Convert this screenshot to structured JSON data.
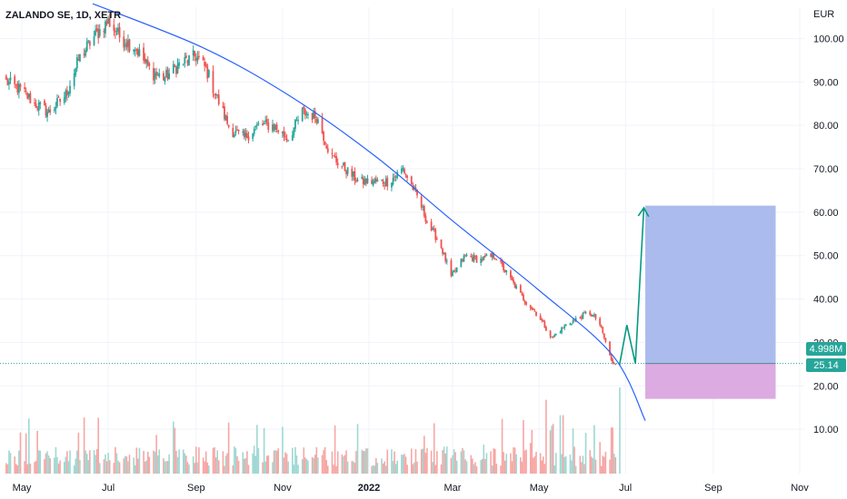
{
  "chart_data": {
    "type": "candlestick",
    "title": "ZALANDO SE, 1D, XETR",
    "y_unit": "EUR",
    "ylim": [
      2,
      109
    ],
    "y_ticks": [
      10,
      20,
      30,
      40,
      50,
      60,
      70,
      80,
      90,
      100
    ],
    "y_tick_labels": [
      "10.00",
      "20.00",
      "30.00",
      "40.00",
      "50.00",
      "60.00",
      "70.00",
      "80.00",
      "90.00",
      "100.00"
    ],
    "x_ticks": [
      {
        "date": "2021-05-01",
        "label": "May",
        "bold": false
      },
      {
        "date": "2021-07-01",
        "label": "Jul",
        "bold": false
      },
      {
        "date": "2021-09-01",
        "label": "Sep",
        "bold": false
      },
      {
        "date": "2021-11-01",
        "label": "Nov",
        "bold": false
      },
      {
        "date": "2022-01-01",
        "label": "2022",
        "bold": true
      },
      {
        "date": "2022-03-01",
        "label": "Mar",
        "bold": false
      },
      {
        "date": "2022-05-01",
        "label": "May",
        "bold": false
      },
      {
        "date": "2022-07-01",
        "label": "Jul",
        "bold": false
      },
      {
        "date": "2022-09-01",
        "label": "Sep",
        "bold": false
      },
      {
        "date": "2022-11-01",
        "label": "Nov",
        "bold": false
      }
    ],
    "grid": true,
    "colors": {
      "up": "#26a69a",
      "down": "#ef5350",
      "up_volume": "#9fd8d2",
      "down_volume": "#f6a7a5",
      "trendline": "#2962ff",
      "arrow": "#089981",
      "target_zone": "#a6b7ec",
      "stop_zone": "#d9a7e0",
      "badge": "#26a69a"
    },
    "close_path": [
      [
        "2021-04-20",
        90
      ],
      [
        "2021-05-01",
        88
      ],
      [
        "2021-05-10",
        85
      ],
      [
        "2021-05-20",
        83
      ],
      [
        "2021-06-01",
        87
      ],
      [
        "2021-06-10",
        95
      ],
      [
        "2021-06-20",
        100
      ],
      [
        "2021-07-01",
        104
      ],
      [
        "2021-07-10",
        100
      ],
      [
        "2021-07-20",
        98
      ],
      [
        "2021-08-01",
        92
      ],
      [
        "2021-08-10",
        91
      ],
      [
        "2021-08-20",
        94
      ],
      [
        "2021-09-01",
        96
      ],
      [
        "2021-09-08",
        93
      ],
      [
        "2021-09-15",
        87
      ],
      [
        "2021-09-25",
        79
      ],
      [
        "2021-10-05",
        77
      ],
      [
        "2021-10-15",
        80
      ],
      [
        "2021-10-25",
        80
      ],
      [
        "2021-11-05",
        77
      ],
      [
        "2021-11-15",
        83
      ],
      [
        "2021-11-25",
        82
      ],
      [
        "2021-12-05",
        73
      ],
      [
        "2021-12-15",
        70
      ],
      [
        "2021-12-25",
        67
      ],
      [
        "2022-01-05",
        67
      ],
      [
        "2022-01-15",
        67
      ],
      [
        "2022-01-25",
        70
      ],
      [
        "2022-02-05",
        63
      ],
      [
        "2022-02-12",
        57
      ],
      [
        "2022-02-20",
        53
      ],
      [
        "2022-02-28",
        45
      ],
      [
        "2022-03-10",
        50
      ],
      [
        "2022-03-20",
        49
      ],
      [
        "2022-03-31",
        50
      ],
      [
        "2022-04-10",
        45
      ],
      [
        "2022-04-20",
        40
      ],
      [
        "2022-05-01",
        36
      ],
      [
        "2022-05-10",
        31
      ],
      [
        "2022-05-20",
        34
      ],
      [
        "2022-05-31",
        36
      ],
      [
        "2022-06-05",
        37
      ],
      [
        "2022-06-12",
        35
      ],
      [
        "2022-06-18",
        29
      ],
      [
        "2022-06-22",
        25
      ],
      [
        "2022-06-27",
        25.14
      ]
    ],
    "last_volume_label": "4.998M",
    "last_price_label": "25.14",
    "trendline": [
      [
        "2021-06-20",
        108
      ],
      [
        "2021-09-05",
        98
      ],
      [
        "2021-11-05",
        87
      ],
      [
        "2022-01-05",
        73
      ],
      [
        "2022-03-01",
        58
      ],
      [
        "2022-05-01",
        42
      ],
      [
        "2022-06-22",
        27
      ],
      [
        "2022-07-15",
        12
      ]
    ],
    "projection_arrow": [
      [
        "2022-06-27",
        25.14
      ],
      [
        "2022-07-02",
        34
      ],
      [
        "2022-07-08",
        25.14
      ],
      [
        "2022-07-14",
        61
      ]
    ],
    "position": {
      "entry": 25.14,
      "target": 61.5,
      "stop": 17,
      "start": "2022-07-15",
      "end": "2022-10-15"
    }
  }
}
